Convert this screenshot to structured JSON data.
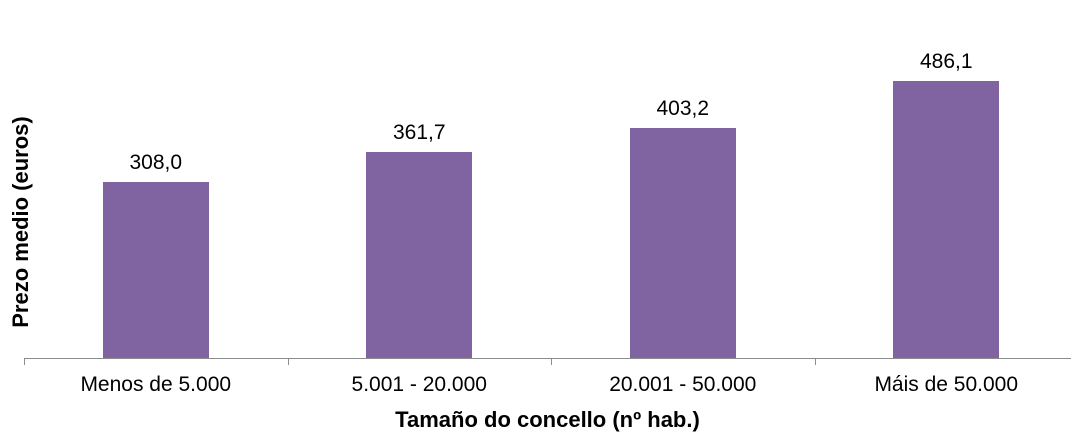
{
  "chart_data": {
    "type": "bar",
    "categories": [
      "Menos de 5.000",
      "5.001 - 20.000",
      "20.001 - 50.000",
      "Máis de 50.000"
    ],
    "values": [
      308.0,
      361.7,
      403.2,
      486.1
    ],
    "value_labels": [
      "308,0",
      "361,7",
      "403,2",
      "486,1"
    ],
    "title": "",
    "xlabel": "Tamaño do concello (nº hab.)",
    "ylabel": "Prezo medio (euros)",
    "ylim": [
      0,
      600
    ],
    "grid": false,
    "legend": "none",
    "bar_color": "#8064A2",
    "axis_color": "#8C8C8C",
    "text_color": "#000000",
    "background_color": "#FFFFFF"
  }
}
